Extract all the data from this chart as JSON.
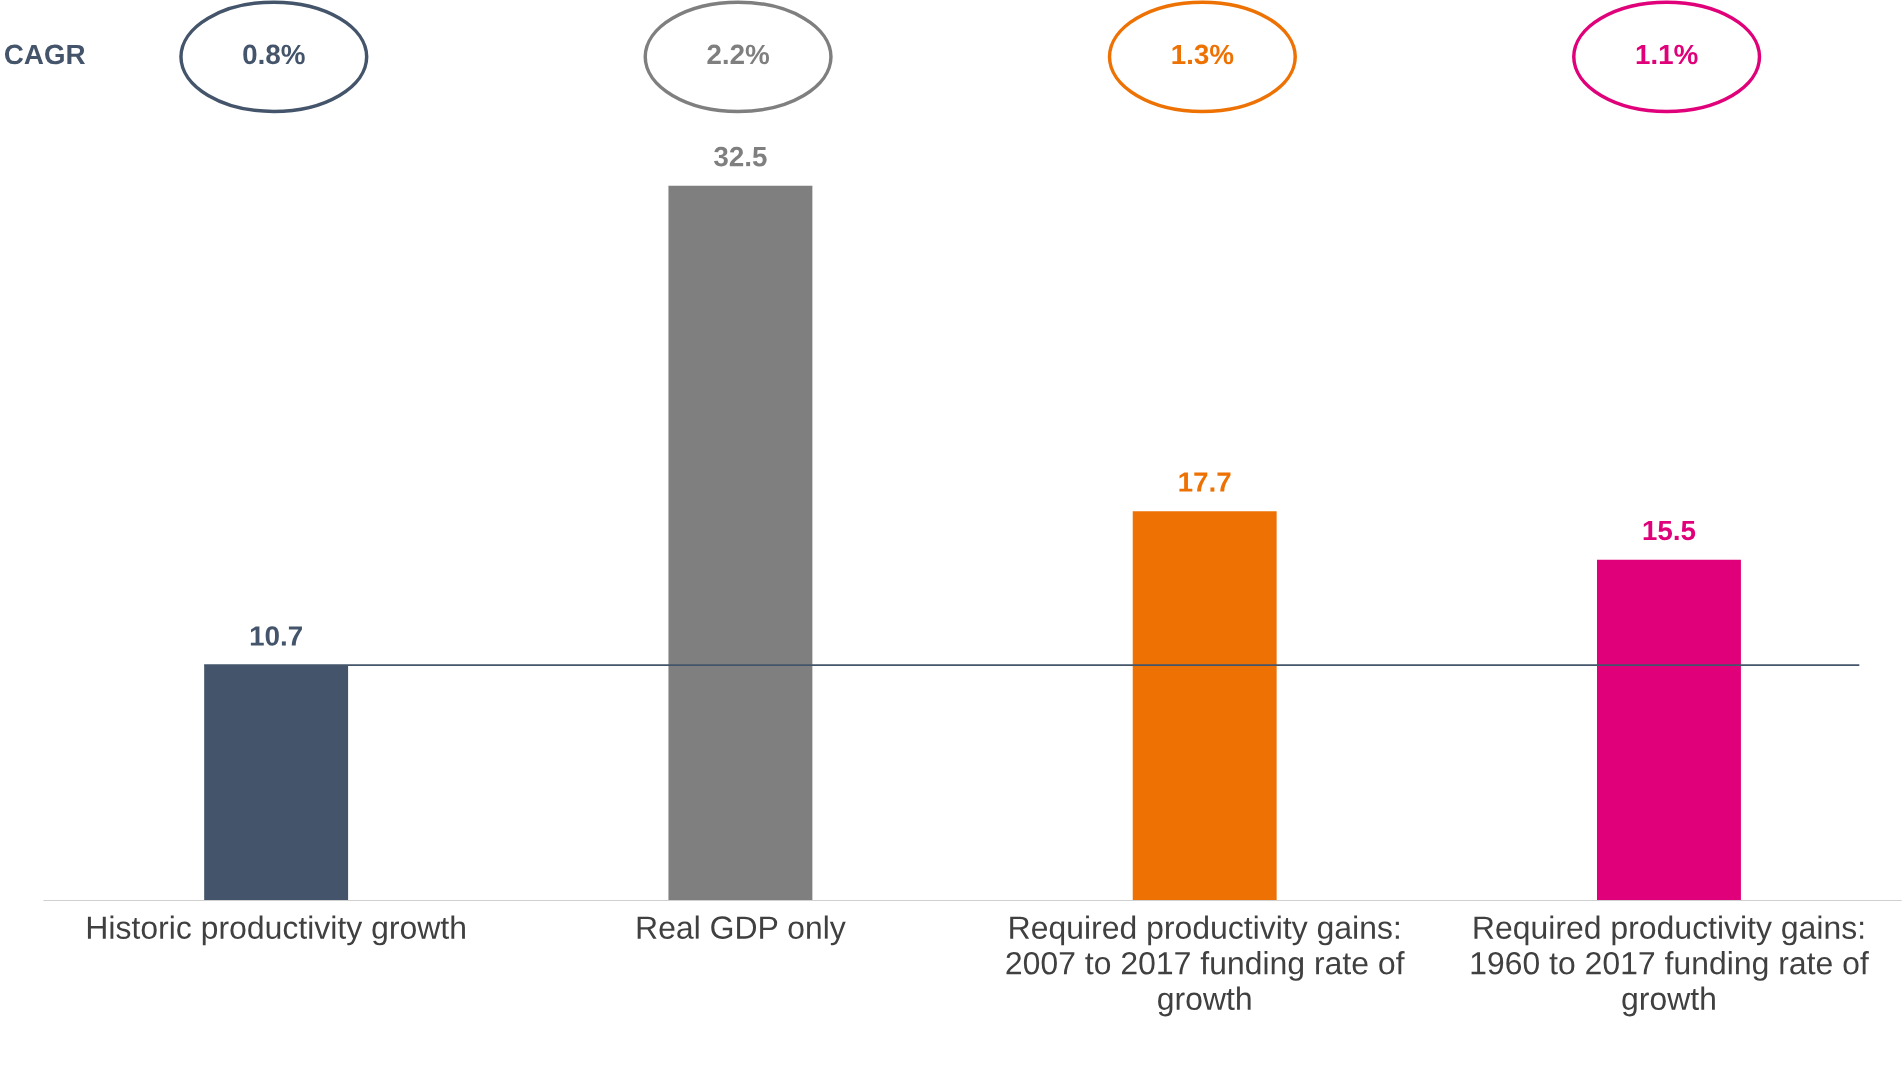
{
  "chart_data": {
    "type": "bar",
    "categories": [
      "Historic productivity growth",
      "Real GDP only",
      "Required productivity gains: 2007 to 2017 funding rate of growth",
      "Required productivity gains: 1960 to 2017 funding rate of growth"
    ],
    "values": [
      10.7,
      32.5,
      17.7,
      15.5
    ],
    "colors": [
      "#44546a",
      "#7f7f7f",
      "#ed7203",
      "#e0007a"
    ],
    "data_labels": true,
    "annotations": [
      "CAGR",
      "0.8%",
      "2.2%",
      "1.3%",
      "1.1%"
    ],
    "ref_lines": [
      {
        "axis": "y",
        "value": 10.7,
        "color": "#44546a"
      }
    ]
  }
}
